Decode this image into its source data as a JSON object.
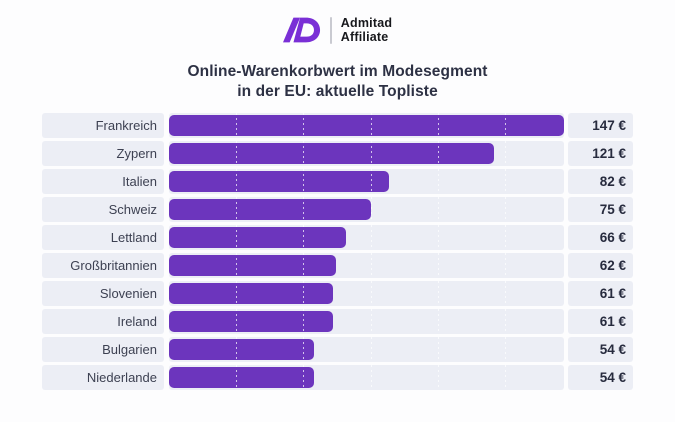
{
  "logo": {
    "mark": "AD",
    "company": "Admitad",
    "product": "Affiliate"
  },
  "title": {
    "line1": "Online-Warenkorbwert im Modesegment",
    "line2": "in der EU: aktuelle Topliste"
  },
  "chart_data": {
    "type": "bar",
    "orientation": "horizontal",
    "title": "Online-Warenkorbwert im Modesegment in der EU: aktuelle Topliste",
    "categories": [
      "Frankreich",
      "Zypern",
      "Italien",
      "Schweiz",
      "Lettland",
      "Großbritannien",
      "Slovenien",
      "Ireland",
      "Bulgarien",
      "Niederlande"
    ],
    "values": [
      147,
      121,
      82,
      75,
      66,
      62,
      61,
      61,
      54,
      54
    ],
    "display_values": [
      "147 €",
      "121 €",
      "82 €",
      "75 €",
      "66 €",
      "62 €",
      "61 €",
      "61 €",
      "54 €",
      "54 €"
    ],
    "unit": "€",
    "xlim": [
      0,
      147
    ],
    "gridline_interval": 25,
    "grid": "dotted-vertical-white",
    "legend": "none",
    "sorted": "descending"
  },
  "colors": {
    "bar": "#6C35BD",
    "logo_mark": "#7A2FD6",
    "row_background": "#ECEEF5",
    "title_text": "#2D3144",
    "label_text": "#3D4152",
    "value_text": "#272B3E"
  }
}
